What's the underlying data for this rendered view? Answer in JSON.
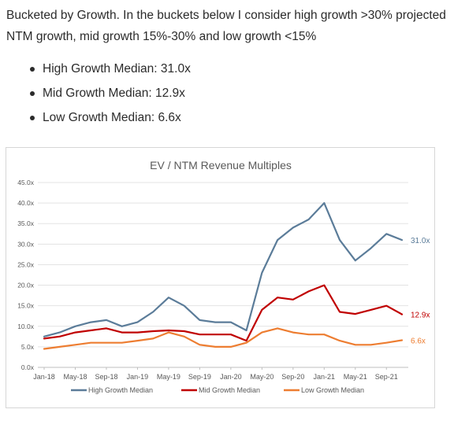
{
  "intro_text": "Bucketed by Growth. In the buckets below I consider high growth >30% projected NTM growth, mid growth 15%-30% and low growth <15%",
  "bullets": [
    "High Growth Median: 31.0x",
    "Mid Growth Median: 12.9x",
    "Low Growth Median: 6.6x"
  ],
  "chart_data": {
    "type": "line",
    "title": "EV / NTM Revenue Multiples",
    "xlabel": "",
    "ylabel": "",
    "ylim": [
      0,
      45
    ],
    "yticks": [
      "0.0x",
      "5.0x",
      "10.0x",
      "15.0x",
      "20.0x",
      "25.0x",
      "30.0x",
      "35.0x",
      "40.0x",
      "45.0x"
    ],
    "xticks": [
      "Jan-18",
      "May-18",
      "Sep-18",
      "Jan-19",
      "May-19",
      "Sep-19",
      "Jan-20",
      "May-20",
      "Sep-20",
      "Jan-21",
      "May-21",
      "Sep-21"
    ],
    "x": [
      "Jan-18",
      "Mar-18",
      "May-18",
      "Jul-18",
      "Sep-18",
      "Nov-18",
      "Jan-19",
      "Mar-19",
      "May-19",
      "Jul-19",
      "Sep-19",
      "Nov-19",
      "Jan-20",
      "Mar-20",
      "May-20",
      "Jul-20",
      "Sep-20",
      "Nov-20",
      "Jan-21",
      "Mar-21",
      "May-21",
      "Jul-21",
      "Sep-21",
      "Nov-21"
    ],
    "grid": true,
    "legend_position": "bottom",
    "series": [
      {
        "name": "High Growth Median",
        "color": "#5b7c99",
        "end_label": "31.0x",
        "values": [
          7.5,
          8.5,
          10.0,
          11.0,
          11.5,
          10.0,
          11.0,
          13.5,
          17.0,
          15.0,
          11.5,
          11.0,
          11.0,
          9.0,
          23.0,
          31.0,
          34.0,
          36.0,
          40.0,
          31.0,
          26.0,
          29.0,
          32.5,
          31.0
        ]
      },
      {
        "name": "Mid Growth Median",
        "color": "#c00000",
        "end_label": "12.9x",
        "values": [
          7.0,
          7.5,
          8.5,
          9.0,
          9.5,
          8.5,
          8.5,
          8.8,
          9.0,
          8.8,
          8.0,
          8.0,
          8.0,
          6.5,
          14.0,
          17.0,
          16.5,
          18.5,
          20.0,
          13.5,
          13.0,
          14.0,
          15.0,
          12.9
        ]
      },
      {
        "name": "Low Growth Median",
        "color": "#ed7d31",
        "end_label": "6.6x",
        "values": [
          4.5,
          5.0,
          5.5,
          6.0,
          6.0,
          6.0,
          6.5,
          7.0,
          8.5,
          7.5,
          5.5,
          5.0,
          5.0,
          6.0,
          8.5,
          9.5,
          8.5,
          8.0,
          8.0,
          6.5,
          5.5,
          5.5,
          6.0,
          6.6
        ]
      }
    ]
  }
}
